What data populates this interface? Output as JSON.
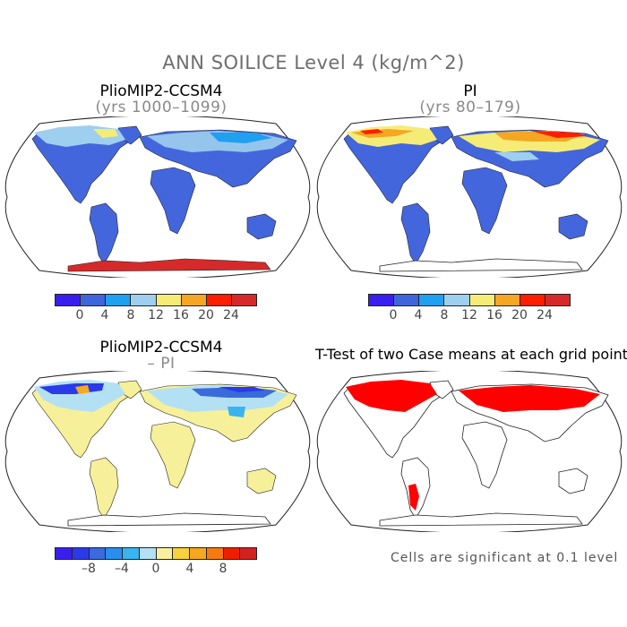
{
  "title": "ANN SOILICE Level 4 (kg/m^2)",
  "panels": [
    {
      "title": "PlioMIP2-CCSM4",
      "subtitle": "(yrs 1000–1099)"
    },
    {
      "title": "PI",
      "subtitle": "(yrs 80–179)"
    },
    {
      "title": "PlioMIP2-CCSM4",
      "subtitle": "– PI"
    },
    {
      "title": "T-Test of two Case means at each grid point",
      "subtitle": ""
    }
  ],
  "colorbar_abs": {
    "colors": [
      "#3a1ef0",
      "#3e65dc",
      "#1fa0f0",
      "#9ecfee",
      "#f5ec78",
      "#f5a623",
      "#ff1e00",
      "#d62a2a"
    ],
    "tick_labels": [
      "0",
      "4",
      "8",
      "12",
      "16",
      "20",
      "24"
    ]
  },
  "colorbar_diff": {
    "colors": [
      "#3a1ef0",
      "#2a3ae8",
      "#3a6adc",
      "#2a8ef0",
      "#3ab4f0",
      "#b4e0f4",
      "#f8f0a0",
      "#f8d23a",
      "#f6a81e",
      "#f67a10",
      "#f01e00",
      "#d42020"
    ],
    "tick_labels": [
      "–8",
      "–4",
      "0",
      "4",
      "8"
    ]
  },
  "note": "Cells are significant at 0.1 level",
  "colors": {
    "land_low": "#4466dd",
    "land_diff": "#f6f09a",
    "significant": "#ff0000"
  }
}
